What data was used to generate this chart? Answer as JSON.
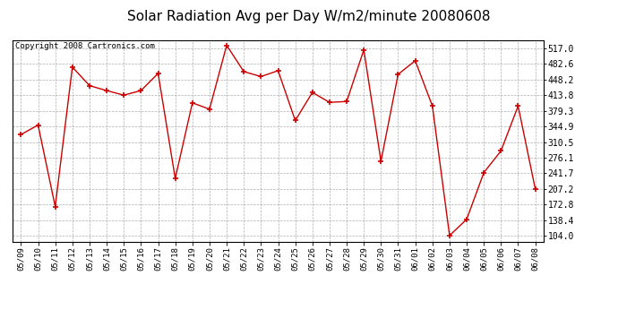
{
  "title": "Solar Radiation Avg per Day W/m2/minute 20080608",
  "copyright": "Copyright 2008 Cartronics.com",
  "dates": [
    "05/09",
    "05/10",
    "05/11",
    "05/12",
    "05/13",
    "05/14",
    "05/15",
    "05/16",
    "05/17",
    "05/18",
    "05/19",
    "05/20",
    "05/21",
    "05/22",
    "05/23",
    "05/24",
    "05/25",
    "05/26",
    "05/27",
    "05/28",
    "05/29",
    "05/30",
    "05/31",
    "06/01",
    "06/02",
    "06/03",
    "06/04",
    "06/05",
    "06/06",
    "06/07",
    "06/08"
  ],
  "values": [
    327,
    348,
    168,
    476,
    435,
    424,
    414,
    424,
    462,
    230,
    397,
    383,
    524,
    466,
    455,
    468,
    358,
    420,
    398,
    400,
    514,
    268,
    460,
    490,
    390,
    104,
    140,
    243,
    291,
    390,
    207
  ],
  "line_color": "#cc0000",
  "marker_color": "#cc0000",
  "bg_color": "#ffffff",
  "plot_bg_color": "#ffffff",
  "grid_color": "#999999",
  "yticks": [
    104.0,
    138.4,
    172.8,
    207.2,
    241.7,
    276.1,
    310.5,
    344.9,
    379.3,
    413.8,
    448.2,
    482.6,
    517.0
  ],
  "ylim": [
    90,
    535
  ],
  "xlim": [
    -0.5,
    30.5
  ],
  "title_fontsize": 11,
  "copyright_fontsize": 6.5,
  "tick_fontsize": 6.5,
  "ytick_fontsize": 7
}
